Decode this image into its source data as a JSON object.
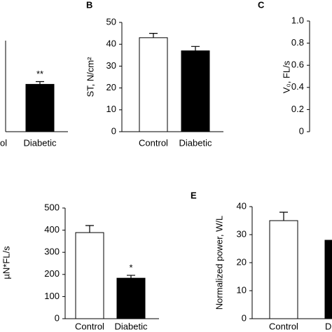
{
  "chart_data": [
    {
      "type": "bar",
      "categories": [
        "ol",
        "Diabetic"
      ],
      "values": [
        null,
        0.52
      ],
      "errors": [
        null,
        0.03
      ],
      "colors": [
        "#ffffff",
        "#000000"
      ],
      "ylim": [
        0,
        1
      ],
      "annotations": [
        {
          "category": "Diabetic",
          "text": "**"
        }
      ]
    },
    {
      "type": "bar",
      "label": "B",
      "ylabel": "ST, N/cm²",
      "categories": [
        "Control",
        "Diabetic"
      ],
      "values": [
        43,
        37
      ],
      "errors": [
        2,
        2
      ],
      "colors": [
        "#ffffff",
        "#000000"
      ],
      "ylim": [
        0,
        50
      ],
      "yticks": [
        0,
        10,
        20,
        30,
        40,
        50
      ]
    },
    {
      "type": "bar",
      "label": "C",
      "ylabel": "V₀, FL/s",
      "ylim": [
        0,
        1
      ],
      "yticks": [
        0,
        {
          "value": 0.2,
          "label": "0.2"
        },
        {
          "value": 0.4,
          "label": "0.4"
        },
        {
          "value": 0.6,
          "label": "0.6"
        },
        {
          "value": 0.8,
          "label": "0.8"
        },
        {
          "value": 1,
          "label": "1.0"
        }
      ]
    },
    {
      "type": "bar",
      "ylabel": "µN*FL/s",
      "categories": [
        "Control",
        "Diabetic"
      ],
      "values": [
        389,
        183
      ],
      "errors": [
        32,
        13
      ],
      "colors": [
        "#ffffff",
        "#000000"
      ],
      "ylim": [
        0,
        500
      ],
      "yticks": [
        0,
        100,
        200,
        300,
        400,
        500
      ],
      "annotations": [
        {
          "category": "Diabetic",
          "text": "*"
        }
      ]
    },
    {
      "type": "bar",
      "label": "E",
      "ylabel": "Normalized power, W/L",
      "categories": [
        "Control",
        "Di"
      ],
      "values": [
        35,
        28
      ],
      "errors": [
        3,
        null
      ],
      "colors": [
        "#ffffff",
        "#000000"
      ],
      "ylim": [
        0,
        40
      ],
      "yticks": [
        0,
        10,
        20,
        30,
        40
      ]
    }
  ]
}
